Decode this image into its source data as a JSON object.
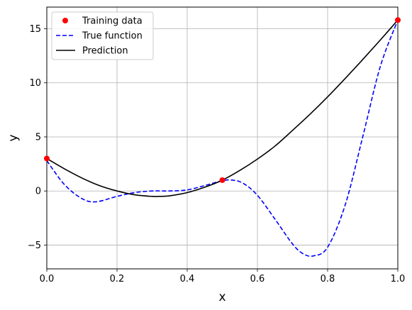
{
  "chart_data": {
    "type": "line",
    "title": "",
    "xlabel": "x",
    "ylabel": "y",
    "xlim": [
      0,
      1
    ],
    "ylim": [
      -7.2,
      17
    ],
    "grid": true,
    "legend_position": "top-left",
    "x_ticks": [
      "0.0",
      "0.2",
      "0.4",
      "0.6",
      "0.8",
      "1.0"
    ],
    "x_tick_values": [
      0,
      0.2,
      0.4,
      0.6,
      0.8,
      1.0
    ],
    "y_ticks": [
      "−5",
      "0",
      "5",
      "10",
      "15"
    ],
    "y_tick_values": [
      -5,
      0,
      5,
      10,
      15
    ],
    "series": [
      {
        "name": "Training data",
        "kind": "scatter",
        "color": "#ff0000",
        "x": [
          0.0,
          0.5,
          1.0
        ],
        "y": [
          3.0,
          1.0,
          15.8
        ]
      },
      {
        "name": "True function",
        "kind": "line",
        "style": "dashed",
        "color": "#0000ff",
        "x": [
          0.0,
          0.05,
          0.1,
          0.14,
          0.2,
          0.25,
          0.3,
          0.35,
          0.4,
          0.45,
          0.5,
          0.53,
          0.56,
          0.6,
          0.65,
          0.7,
          0.73,
          0.76,
          0.8,
          0.85,
          0.9,
          0.95,
          1.0
        ],
        "y": [
          2.8,
          0.6,
          -0.7,
          -1.0,
          -0.5,
          -0.15,
          0.0,
          0.0,
          0.1,
          0.5,
          0.95,
          1.0,
          0.7,
          -0.4,
          -2.6,
          -4.9,
          -5.8,
          -6.0,
          -5.2,
          -1.3,
          5.0,
          11.5,
          15.8
        ]
      },
      {
        "name": "Prediction",
        "kind": "line",
        "style": "solid",
        "color": "#000000",
        "x": [
          0.0,
          0.05,
          0.1,
          0.15,
          0.2,
          0.25,
          0.3,
          0.32,
          0.35,
          0.4,
          0.45,
          0.5,
          0.55,
          0.6,
          0.65,
          0.7,
          0.75,
          0.8,
          0.85,
          0.9,
          0.95,
          1.0
        ],
        "y": [
          3.0,
          2.05,
          1.2,
          0.5,
          0.0,
          -0.35,
          -0.5,
          -0.5,
          -0.45,
          -0.15,
          0.35,
          1.0,
          1.9,
          2.95,
          4.15,
          5.6,
          7.1,
          8.7,
          10.4,
          12.15,
          13.95,
          15.8
        ]
      }
    ]
  }
}
